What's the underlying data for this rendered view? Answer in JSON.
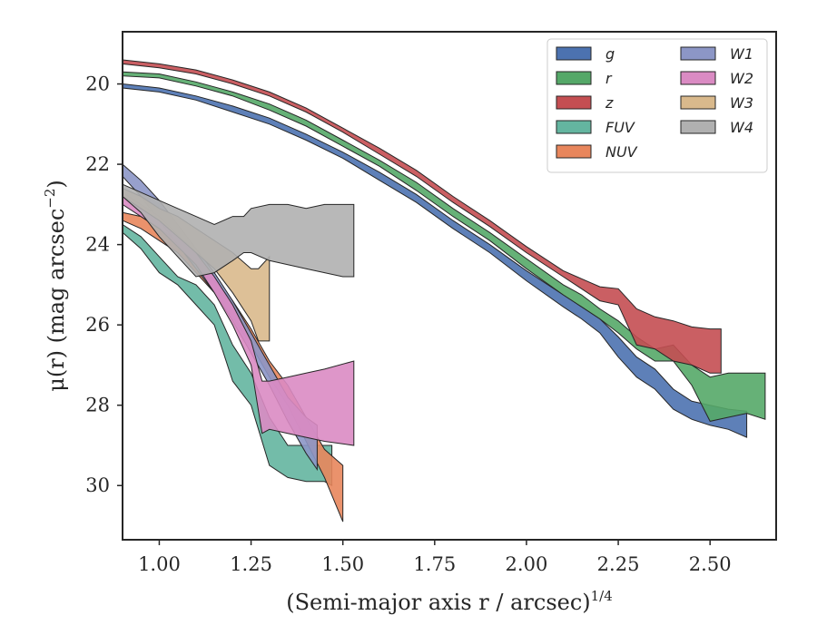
{
  "chart_data": {
    "type": "area",
    "xlabel": "(Semi-major axis r / arcsec)^1/4",
    "ylabel": "μ(r) (mag arcsec^−2)",
    "xlim": [
      0.9,
      2.68
    ],
    "ylim": [
      31.35,
      18.7
    ],
    "y_inverted": true,
    "grid": false,
    "legend_position": "top-right",
    "legend_columns": 2,
    "x_ticks": [
      1.0,
      1.25,
      1.5,
      1.75,
      2.0,
      2.25,
      2.5
    ],
    "x_tick_labels": [
      "1.00",
      "1.25",
      "1.50",
      "1.75",
      "2.00",
      "2.25",
      "2.50"
    ],
    "y_ticks": [
      20,
      22,
      24,
      26,
      28,
      30
    ],
    "y_tick_labels": [
      "20",
      "22",
      "24",
      "26",
      "28",
      "30"
    ],
    "series": [
      {
        "name": "g",
        "color": "#4c72b0",
        "x": [
          0.9,
          1.0,
          1.1,
          1.2,
          1.3,
          1.4,
          1.5,
          1.6,
          1.7,
          1.8,
          1.9,
          2.0,
          2.1,
          2.15,
          2.2,
          2.25,
          2.3,
          2.35,
          2.4,
          2.45,
          2.5,
          2.55,
          2.6
        ],
        "lower": [
          20.0,
          20.1,
          20.3,
          20.55,
          20.85,
          21.25,
          21.7,
          22.2,
          22.75,
          23.4,
          24.0,
          24.65,
          25.25,
          25.55,
          25.85,
          26.3,
          26.8,
          27.1,
          27.6,
          27.9,
          28.0,
          28.1,
          28.15
        ],
        "upper": [
          20.1,
          20.2,
          20.4,
          20.7,
          21.0,
          21.4,
          21.85,
          22.4,
          22.95,
          23.6,
          24.2,
          24.9,
          25.55,
          25.85,
          26.2,
          26.8,
          27.3,
          27.6,
          28.1,
          28.35,
          28.5,
          28.6,
          28.8
        ]
      },
      {
        "name": "r",
        "color": "#55a868",
        "x": [
          0.9,
          1.0,
          1.1,
          1.2,
          1.3,
          1.4,
          1.5,
          1.6,
          1.7,
          1.8,
          1.9,
          2.0,
          2.1,
          2.15,
          2.2,
          2.25,
          2.3,
          2.35,
          2.4,
          2.45,
          2.5,
          2.55,
          2.6,
          2.65
        ],
        "lower": [
          19.7,
          19.75,
          19.95,
          20.2,
          20.5,
          20.9,
          21.4,
          21.9,
          22.45,
          23.1,
          23.7,
          24.35,
          25.0,
          25.25,
          25.6,
          25.9,
          26.3,
          26.6,
          26.5,
          27.0,
          27.3,
          27.2,
          27.2,
          27.2
        ],
        "upper": [
          19.8,
          19.85,
          20.05,
          20.3,
          20.65,
          21.05,
          21.55,
          22.05,
          22.65,
          23.3,
          23.9,
          24.6,
          25.25,
          25.55,
          25.85,
          26.2,
          26.6,
          26.9,
          26.9,
          27.5,
          28.4,
          28.3,
          28.2,
          28.35
        ]
      },
      {
        "name": "z",
        "color": "#c44e52",
        "x": [
          0.9,
          1.0,
          1.1,
          1.2,
          1.3,
          1.4,
          1.5,
          1.6,
          1.7,
          1.8,
          1.9,
          2.0,
          2.1,
          2.15,
          2.2,
          2.25,
          2.3,
          2.35,
          2.4,
          2.45,
          2.5,
          2.53
        ],
        "lower": [
          19.4,
          19.5,
          19.65,
          19.9,
          20.2,
          20.6,
          21.1,
          21.6,
          22.15,
          22.8,
          23.4,
          24.05,
          24.65,
          24.85,
          25.05,
          25.1,
          25.6,
          25.8,
          25.9,
          26.05,
          26.1,
          26.1
        ],
        "upper": [
          19.5,
          19.6,
          19.75,
          20.0,
          20.3,
          20.7,
          21.2,
          21.75,
          22.3,
          22.95,
          23.55,
          24.2,
          24.8,
          25.1,
          25.4,
          25.5,
          26.5,
          26.6,
          26.9,
          27.0,
          27.2,
          27.2
        ]
      },
      {
        "name": "FUV",
        "color": "#64b5a0",
        "x": [
          0.9,
          0.95,
          1.0,
          1.05,
          1.1,
          1.15,
          1.2,
          1.25,
          1.3,
          1.35,
          1.4,
          1.45,
          1.47
        ],
        "lower": [
          23.5,
          23.8,
          24.3,
          24.8,
          25.0,
          25.5,
          26.5,
          27.2,
          28.3,
          29.0,
          29.0,
          29.0,
          29.0
        ],
        "upper": [
          23.7,
          24.1,
          24.7,
          25.0,
          25.5,
          26.0,
          27.4,
          28.0,
          29.5,
          29.8,
          29.9,
          29.9,
          30.0
        ]
      },
      {
        "name": "NUV",
        "color": "#e8865c",
        "x": [
          0.9,
          0.95,
          1.0,
          1.05,
          1.1,
          1.15,
          1.2,
          1.25,
          1.3,
          1.35,
          1.4,
          1.45,
          1.5
        ],
        "lower": [
          23.2,
          23.3,
          23.6,
          23.9,
          24.3,
          24.9,
          25.4,
          26.1,
          26.9,
          27.5,
          28.3,
          29.1,
          29.5
        ],
        "upper": [
          23.4,
          23.6,
          23.9,
          24.2,
          24.7,
          25.2,
          25.8,
          26.5,
          27.3,
          28.0,
          28.9,
          29.8,
          30.9
        ]
      },
      {
        "name": "W1",
        "color": "#8c96c6",
        "x": [
          0.9,
          0.95,
          1.0,
          1.05,
          1.1,
          1.15,
          1.2,
          1.25,
          1.3,
          1.35,
          1.4,
          1.43
        ],
        "lower": [
          22.0,
          22.4,
          22.9,
          23.5,
          24.1,
          24.7,
          25.4,
          26.2,
          27.0,
          27.8,
          28.3,
          28.5
        ],
        "upper": [
          22.3,
          22.8,
          23.4,
          24.0,
          24.6,
          25.2,
          25.9,
          26.7,
          27.5,
          28.4,
          29.2,
          29.6
        ]
      },
      {
        "name": "W2",
        "color": "#da8bc3",
        "x": [
          0.9,
          1.0,
          1.1,
          1.15,
          1.2,
          1.25,
          1.28,
          1.3,
          1.35,
          1.4,
          1.45,
          1.53
        ],
        "lower": [
          22.7,
          23.3,
          24.2,
          24.8,
          25.5,
          26.4,
          27.4,
          27.4,
          27.3,
          27.2,
          27.1,
          26.9
        ],
        "upper": [
          23.0,
          23.6,
          24.5,
          25.2,
          26.0,
          27.0,
          28.7,
          28.6,
          28.7,
          28.8,
          28.9,
          29.0
        ]
      },
      {
        "name": "W3",
        "color": "#d9b98c",
        "x": [
          0.9,
          0.95,
          1.0,
          1.05,
          1.1,
          1.15,
          1.2,
          1.25,
          1.27,
          1.3
        ],
        "lower": [
          22.6,
          22.8,
          23.1,
          23.3,
          23.6,
          23.9,
          24.2,
          24.6,
          24.6,
          24.3
        ],
        "upper": [
          22.8,
          23.1,
          23.4,
          23.8,
          24.2,
          24.6,
          25.2,
          25.9,
          26.4,
          26.4
        ]
      },
      {
        "name": "W4",
        "color": "#b0b0b0",
        "x": [
          0.9,
          0.95,
          1.0,
          1.05,
          1.1,
          1.15,
          1.2,
          1.23,
          1.25,
          1.3,
          1.35,
          1.4,
          1.45,
          1.5,
          1.53
        ],
        "lower": [
          22.5,
          22.7,
          22.9,
          23.1,
          23.3,
          23.5,
          23.3,
          23.3,
          23.1,
          23.0,
          23.0,
          23.1,
          23.0,
          23.0,
          23.0
        ],
        "upper": [
          22.8,
          23.2,
          23.8,
          24.3,
          24.8,
          24.7,
          24.4,
          24.2,
          24.2,
          24.4,
          24.5,
          24.6,
          24.7,
          24.8,
          24.8
        ]
      }
    ]
  }
}
